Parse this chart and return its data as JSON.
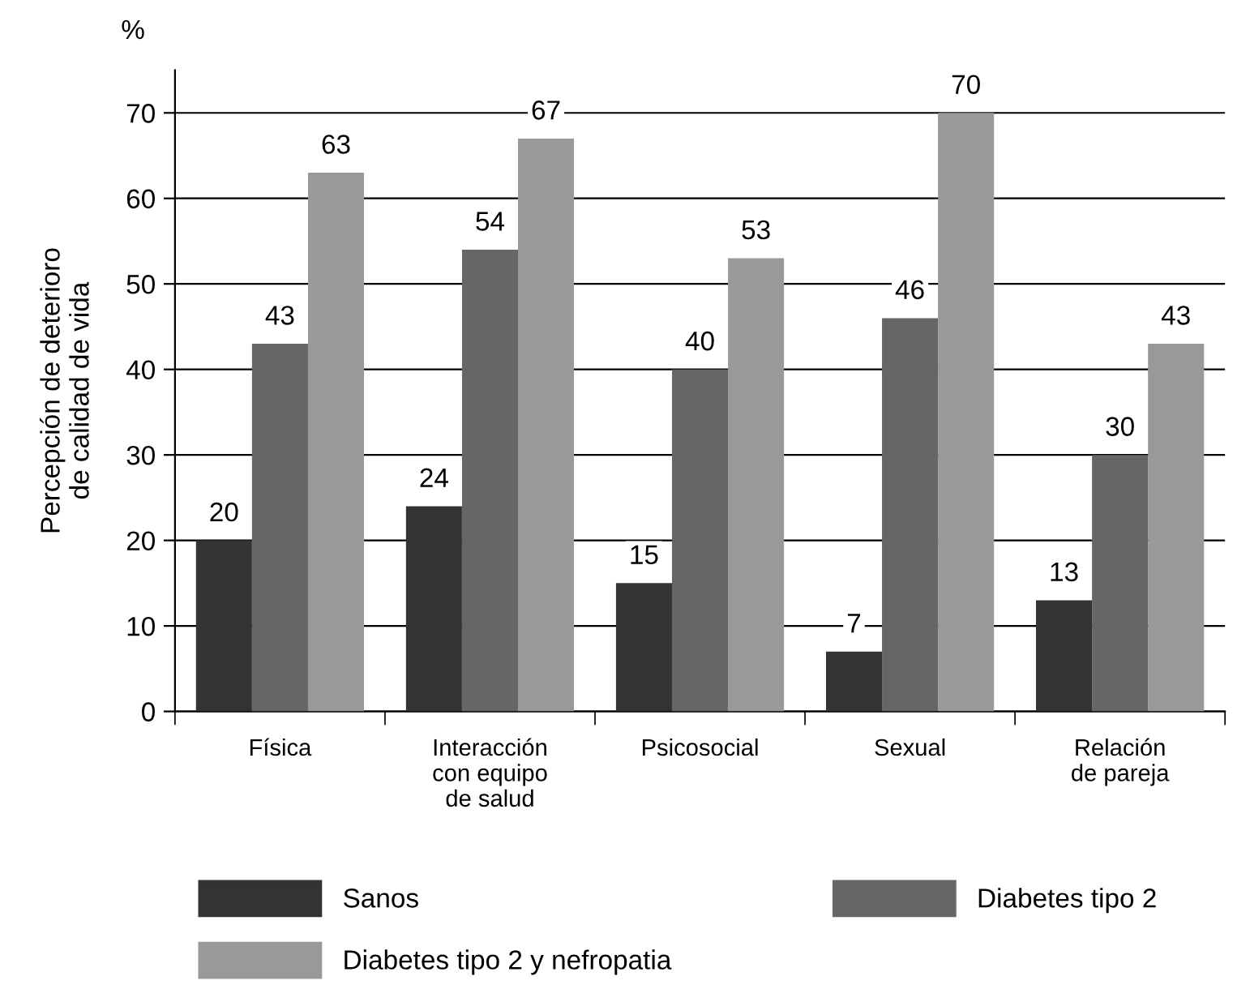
{
  "chart_data": {
    "type": "bar",
    "ylabel": "Percepción de deterioro\nde calidad de vida",
    "annotations": [
      "%"
    ],
    "categories": [
      "Física",
      "Interacción\ncon equipo\nde salud",
      "Psicosocial",
      "Sexual",
      "Relación\nde pareja"
    ],
    "series": [
      {
        "name": "Sanos",
        "color": "#333333",
        "values": [
          20,
          24,
          15,
          7,
          13
        ]
      },
      {
        "name": "Diabetes tipo 2",
        "color": "#666666",
        "values": [
          43,
          54,
          40,
          46,
          30
        ]
      },
      {
        "name": "Diabetes tipo 2 y nefropatia",
        "color": "#999999",
        "values": [
          63,
          67,
          53,
          70,
          43
        ]
      }
    ],
    "ylim": [
      0,
      75
    ],
    "yticks": [
      0,
      10,
      20,
      30,
      40,
      50,
      60,
      70
    ],
    "grid": "y",
    "data_labels": true,
    "legend": "bottom"
  }
}
